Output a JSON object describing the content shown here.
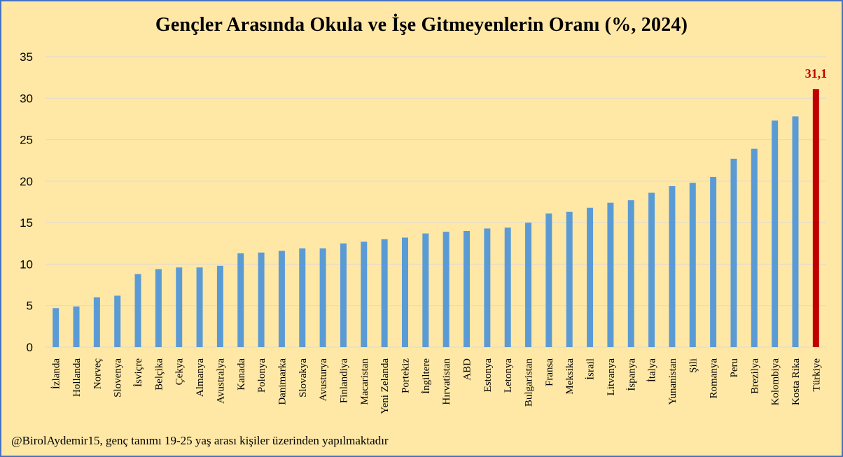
{
  "chart_data": {
    "type": "bar",
    "title": "Gençler Arasında Okula ve İşe Gitmeyenlerin Oranı (%, 2024)",
    "xlabel": "",
    "ylabel": "",
    "ylim": [
      0,
      35
    ],
    "yticks": [
      "0",
      "5",
      "10",
      "15",
      "20",
      "25",
      "30",
      "35"
    ],
    "grid": true,
    "categories": [
      "İzlanda",
      "Hollanda",
      "Norveç",
      "Slovenya",
      "İsviçre",
      "Belçika",
      "Çekya",
      "Almanya",
      "Avustralya",
      "Kanada",
      "Polonya",
      "Danimarka",
      "Slovakya",
      "Avusturya",
      "Finlandiya",
      "Macaristan",
      "Yeni Zelanda",
      "Portekiz",
      "İngiltere",
      "Hırvatistan",
      "ABD",
      "Estonya",
      "Letonya",
      "Bulgaristan",
      "Fransa",
      "Meksika",
      "İsrail",
      "Litvanya",
      "İspanya",
      "İtalya",
      "Yunanistan",
      "Şili",
      "Romanya",
      "Peru",
      "Brezilya",
      "Kolombiya",
      "Kosta Rika",
      "Türkiye"
    ],
    "values": [
      4.7,
      4.9,
      6.0,
      6.2,
      8.8,
      9.4,
      9.6,
      9.6,
      9.8,
      11.3,
      11.4,
      11.6,
      11.9,
      11.9,
      12.5,
      12.7,
      13.0,
      13.2,
      13.7,
      13.9,
      14.0,
      14.3,
      14.4,
      15.0,
      16.1,
      16.3,
      16.8,
      17.4,
      17.7,
      18.6,
      19.4,
      19.8,
      20.5,
      22.7,
      23.9,
      27.3,
      27.8,
      31.1
    ],
    "bar_color": "#5b9bd5",
    "highlight_index": 37,
    "highlight_color": "#c00000",
    "highlight_label": "31,1"
  },
  "footnote": "@BirolAydemir15, genç tanımı 19-25 yaş arası kişiler üzerinden yapılmaktadır"
}
